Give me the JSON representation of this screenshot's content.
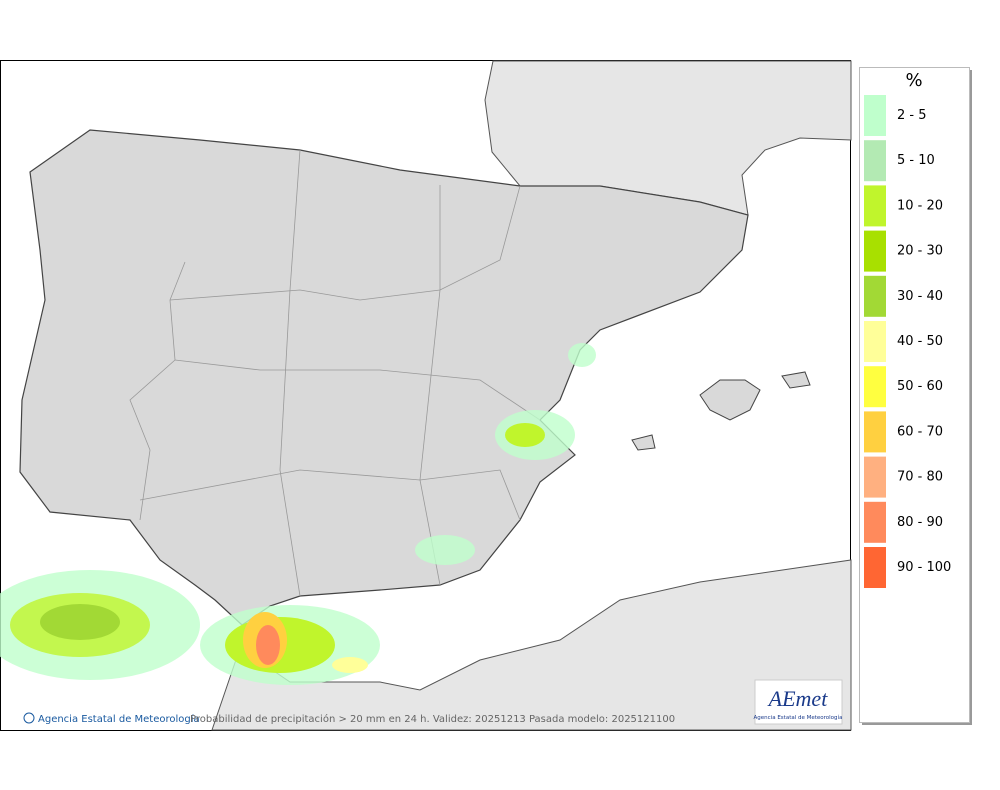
{
  "legend": {
    "title": "%",
    "items": [
      {
        "label": "2 - 5",
        "color": "#bfffcc"
      },
      {
        "label": "5 - 10",
        "color": "#b3eab3"
      },
      {
        "label": "10 - 20",
        "color": "#c0f52c"
      },
      {
        "label": "20 - 30",
        "color": "#a8e000"
      },
      {
        "label": "30 - 40",
        "color": "#a2d935"
      },
      {
        "label": "40 - 50",
        "color": "#ffff99"
      },
      {
        "label": "50 - 60",
        "color": "#ffff40"
      },
      {
        "label": "60 - 70",
        "color": "#ffd040"
      },
      {
        "label": "70 - 80",
        "color": "#ffb080"
      },
      {
        "label": "80 - 90",
        "color": "#ff8a5c"
      },
      {
        "label": "90 - 100",
        "color": "#ff6633"
      }
    ]
  },
  "footer": {
    "agency": "Agencia Estatal de Meteorología",
    "caption": "Probabilidad de precipitación > 20 mm en 24 h. Validez: 20251213 Pasada modelo: 2025121100"
  },
  "logo": {
    "name": "AEmet",
    "subtitle": "Agencia Estatal de Meteorología"
  }
}
